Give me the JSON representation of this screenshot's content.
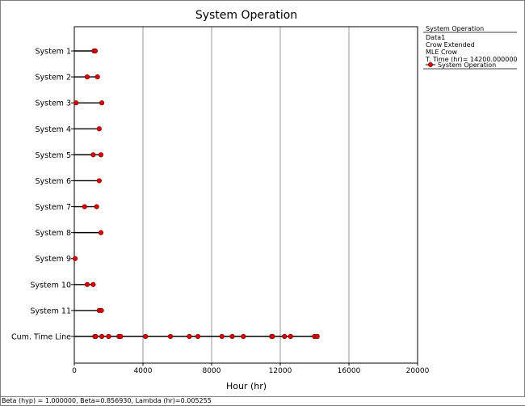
{
  "chart_data": {
    "type": "scatter",
    "title": "System Operation",
    "xlabel": "Hour (hr)",
    "xlim": [
      0,
      20000
    ],
    "xticks": [
      0,
      4000,
      8000,
      12000,
      16000,
      20000
    ],
    "grid": true,
    "categories": [
      "System 1",
      "System 2",
      "System 3",
      "System 4",
      "System 5",
      "System 6",
      "System 7",
      "System 8",
      "System 9",
      "System 10",
      "System 11",
      "Cum. Time Line"
    ],
    "rows": [
      {
        "name": "System 1",
        "end": 1250,
        "failures": [
          1150,
          1220
        ]
      },
      {
        "name": "System 2",
        "end": 1350,
        "failures": [
          750,
          1350
        ]
      },
      {
        "name": "System 3",
        "end": 1600,
        "failures": [
          100,
          1600
        ]
      },
      {
        "name": "System 4",
        "end": 1450,
        "failures": [
          1450
        ]
      },
      {
        "name": "System 5",
        "end": 1550,
        "failures": [
          1100,
          1550
        ]
      },
      {
        "name": "System 6",
        "end": 1450,
        "failures": [
          1450
        ]
      },
      {
        "name": "System 7",
        "end": 1300,
        "failures": [
          600,
          1300
        ]
      },
      {
        "name": "System 8",
        "end": 1550,
        "failures": [
          1550
        ]
      },
      {
        "name": "System 9",
        "end": 50,
        "failures": [
          50
        ]
      },
      {
        "name": "System 10",
        "end": 1100,
        "failures": [
          750,
          1100
        ]
      },
      {
        "name": "System 11",
        "end": 1580,
        "failures": [
          1450,
          1580
        ]
      },
      {
        "name": "Cum. Time Line",
        "end": 14200,
        "failures": [
          1200,
          1250,
          1600,
          2000,
          2600,
          2700,
          4150,
          5600,
          6700,
          7200,
          8600,
          9200,
          9850,
          11500,
          11550,
          12250,
          12600,
          14000,
          14150
        ]
      }
    ],
    "legend": {
      "position": "right",
      "heading": "System Operation",
      "lines": [
        "Data1",
        "Crow Extended",
        "MLE Crow",
        "T. Time (hr)= 14200.000000"
      ],
      "series_name": "System Operation"
    },
    "colors": {
      "marker": "#e00000",
      "marker_edge": "#800000",
      "line": "#000000",
      "grid": "#808080"
    }
  },
  "status_text": "Beta (hyp) = 1.000000, Beta=0.856930, Lambda (hr)=0.005255"
}
